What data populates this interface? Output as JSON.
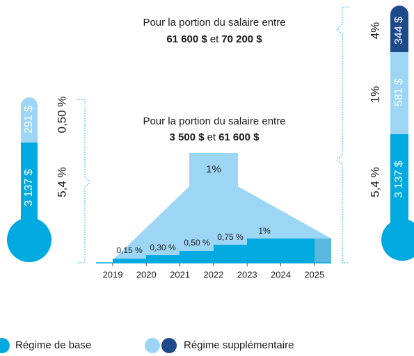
{
  "upper_range": {
    "heading": "Pour la portion du salaire entre",
    "from": "61 600 $",
    "connector": "et",
    "to": "70 200 $"
  },
  "lower_range": {
    "heading": "Pour la portion du salaire entre",
    "from": "3 500 $",
    "connector": "et",
    "to": "61 600 $",
    "final_rate": "1%"
  },
  "left_thermometer": {
    "top_amount": "291 $",
    "bottom_amount": "3 137 $",
    "top_rate": "0,50 %",
    "bottom_rate": "5,4 %"
  },
  "right_thermometer": {
    "top_amount": "344 $",
    "middle_amount": "581 $",
    "bottom_amount": "3 137 $",
    "top_rate": "4%",
    "middle_rate": "1%",
    "bottom_rate": "5,4 %"
  },
  "steps": [
    "0,15 %",
    "0,30 %",
    "0,50 %",
    "0,75 %",
    "1%"
  ],
  "years": [
    "2019",
    "2020",
    "2021",
    "2022",
    "2023",
    "2024",
    "2025"
  ],
  "legend": [
    "Régime de base",
    "Régime supplémentaire"
  ]
}
